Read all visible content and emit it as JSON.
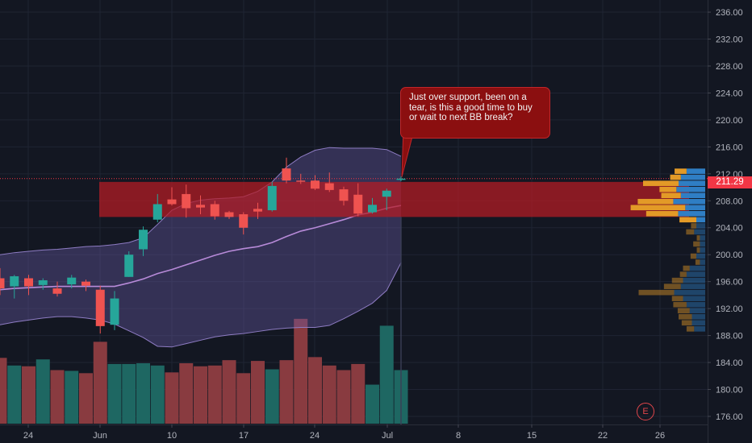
{
  "chart_data": {
    "type": "candlestick",
    "x_axis": {
      "tick_labels": [
        "24",
        "Jun",
        "10",
        "17",
        "24",
        "Jul",
        "8",
        "15",
        "22",
        "26"
      ]
    },
    "y_axis": {
      "range": [
        174.8,
        237.8
      ],
      "tick_values": [
        176,
        180,
        184,
        188,
        192,
        196,
        200,
        204,
        208,
        212,
        216,
        220,
        224,
        228,
        232,
        236
      ],
      "tick_labels": [
        "176.00",
        "180.00",
        "184.00",
        "188.00",
        "192.00",
        "196.00",
        "200.00",
        "204.00",
        "208.00",
        "212.00",
        "216.00",
        "220.00",
        "224.00",
        "228.00",
        "232.00",
        "236.00"
      ]
    },
    "last_price": "211.29",
    "last_price_value": 211.29,
    "annotation": "Just over support, been on a tear, is this a good time to buy or wait to next BB break?",
    "earnings_marker": "E",
    "support_zone": {
      "top": 210.8,
      "bottom": 205.6
    },
    "candles": [
      {
        "o": 196.5,
        "h": 198.0,
        "l": 194.0,
        "c": 195.0
      },
      {
        "o": 195.3,
        "h": 197.0,
        "l": 193.5,
        "c": 196.8
      },
      {
        "o": 196.5,
        "h": 197.0,
        "l": 194.0,
        "c": 195.3
      },
      {
        "o": 195.5,
        "h": 196.5,
        "l": 194.8,
        "c": 196.2
      },
      {
        "o": 195.0,
        "h": 196.0,
        "l": 193.8,
        "c": 194.2
      },
      {
        "o": 195.6,
        "h": 197.0,
        "l": 195.0,
        "c": 196.6
      },
      {
        "o": 196.0,
        "h": 196.3,
        "l": 194.6,
        "c": 195.4
      },
      {
        "o": 194.8,
        "h": 195.4,
        "l": 188.3,
        "c": 189.4
      },
      {
        "o": 189.6,
        "h": 194.6,
        "l": 188.8,
        "c": 193.5
      },
      {
        "o": 196.7,
        "h": 200.5,
        "l": 196.7,
        "c": 200.0
      },
      {
        "o": 200.8,
        "h": 204.2,
        "l": 199.8,
        "c": 203.7
      },
      {
        "o": 205.2,
        "h": 209.0,
        "l": 204.8,
        "c": 207.5
      },
      {
        "o": 208.2,
        "h": 210.0,
        "l": 207.3,
        "c": 207.5
      },
      {
        "o": 209.0,
        "h": 210.4,
        "l": 205.5,
        "c": 206.9
      },
      {
        "o": 207.4,
        "h": 208.8,
        "l": 206.0,
        "c": 207.0
      },
      {
        "o": 207.5,
        "h": 208.0,
        "l": 205.2,
        "c": 205.7
      },
      {
        "o": 206.3,
        "h": 206.5,
        "l": 205.3,
        "c": 205.6
      },
      {
        "o": 206.0,
        "h": 206.3,
        "l": 203.0,
        "c": 204.0
      },
      {
        "o": 206.8,
        "h": 207.7,
        "l": 205.3,
        "c": 206.4
      },
      {
        "o": 206.6,
        "h": 210.8,
        "l": 206.4,
        "c": 210.2
      },
      {
        "o": 212.8,
        "h": 214.4,
        "l": 210.6,
        "c": 211.0
      },
      {
        "o": 211.0,
        "h": 212.0,
        "l": 210.5,
        "c": 210.9
      },
      {
        "o": 211.0,
        "h": 211.8,
        "l": 209.6,
        "c": 209.8
      },
      {
        "o": 210.6,
        "h": 212.2,
        "l": 209.3,
        "c": 209.6
      },
      {
        "o": 209.7,
        "h": 210.1,
        "l": 207.3,
        "c": 208.0
      },
      {
        "o": 208.9,
        "h": 210.6,
        "l": 205.7,
        "c": 206.1
      },
      {
        "o": 206.3,
        "h": 208.4,
        "l": 206.1,
        "c": 207.4
      },
      {
        "o": 208.6,
        "h": 209.8,
        "l": 206.6,
        "c": 209.5
      },
      {
        "o": 211.1,
        "h": 211.6,
        "l": 210.9,
        "c": 211.29
      }
    ],
    "volume_relative": [
      0.86,
      0.76,
      0.75,
      0.84,
      0.7,
      0.69,
      0.66,
      1.07,
      0.78,
      0.78,
      0.79,
      0.76,
      0.67,
      0.79,
      0.75,
      0.76,
      0.83,
      0.66,
      0.82,
      0.71,
      0.83,
      1.37,
      0.87,
      0.76,
      0.7,
      0.78,
      0.51,
      1.28,
      0.7
    ],
    "bollinger": {
      "upper": [
        200.0,
        200.3,
        200.5,
        200.7,
        200.8,
        201.0,
        201.2,
        201.3,
        201.5,
        201.8,
        202.5,
        204.5,
        206.6,
        207.6,
        208.1,
        208.3,
        208.4,
        208.6,
        209.4,
        210.8,
        213.0,
        214.5,
        215.5,
        215.9,
        215.8,
        215.8,
        215.8,
        215.6,
        214.6
      ],
      "middle": [
        194.8,
        195.0,
        195.1,
        195.2,
        195.3,
        195.3,
        195.3,
        195.3,
        195.3,
        195.8,
        196.4,
        197.2,
        197.8,
        198.5,
        199.2,
        199.9,
        200.5,
        200.9,
        201.2,
        201.8,
        202.7,
        203.5,
        204.0,
        204.6,
        205.2,
        205.9,
        206.3,
        206.9,
        207.3
      ],
      "lower": [
        189.6,
        190.0,
        190.3,
        190.6,
        190.8,
        190.8,
        190.6,
        190.3,
        189.7,
        188.7,
        187.7,
        186.4,
        186.3,
        186.8,
        187.3,
        187.8,
        188.1,
        188.3,
        188.6,
        188.9,
        189.1,
        189.2,
        189.2,
        189.5,
        190.5,
        191.6,
        192.8,
        194.7,
        198.8
      ]
    },
    "volume_profile": [
      {
        "price": 212.35,
        "up": 0.42,
        "down": 0.27
      },
      {
        "price": 211.45,
        "up": 0.55,
        "down": 0.24
      },
      {
        "price": 210.55,
        "up": 0.6,
        "down": 0.8
      },
      {
        "price": 209.65,
        "up": 0.65,
        "down": 0.38
      },
      {
        "price": 208.75,
        "up": 0.55,
        "down": 0.44
      },
      {
        "price": 207.85,
        "up": 0.72,
        "down": 0.8
      },
      {
        "price": 206.95,
        "up": 0.45,
        "down": 1.23
      },
      {
        "price": 206.05,
        "up": 0.61,
        "down": 0.72
      },
      {
        "price": 205.15,
        "up": 0.2,
        "down": 0.38
      },
      {
        "price": 204.25,
        "up": 0.2,
        "down": 0.12
      },
      {
        "price": 203.35,
        "up": 0.25,
        "down": 0.18
      },
      {
        "price": 202.45,
        "up": 0.12,
        "down": 0.07
      },
      {
        "price": 201.55,
        "up": 0.12,
        "down": 0.15
      },
      {
        "price": 200.65,
        "up": 0.12,
        "down": 0.07
      },
      {
        "price": 199.75,
        "up": 0.2,
        "down": 0.13
      },
      {
        "price": 198.85,
        "up": 0.12,
        "down": 0.1
      },
      {
        "price": 197.95,
        "up": 0.35,
        "down": 0.15
      },
      {
        "price": 197.05,
        "up": 0.42,
        "down": 0.15
      },
      {
        "price": 196.15,
        "up": 0.5,
        "down": 0.25
      },
      {
        "price": 195.25,
        "up": 0.55,
        "down": 0.38
      },
      {
        "price": 194.35,
        "up": 0.7,
        "down": 0.8
      },
      {
        "price": 193.45,
        "up": 0.5,
        "down": 0.25
      },
      {
        "price": 192.55,
        "up": 0.42,
        "down": 0.3
      },
      {
        "price": 191.65,
        "up": 0.35,
        "down": 0.27
      },
      {
        "price": 190.75,
        "up": 0.3,
        "down": 0.3
      },
      {
        "price": 189.85,
        "up": 0.3,
        "down": 0.23
      },
      {
        "price": 188.95,
        "up": 0.25,
        "down": 0.17
      }
    ],
    "colors": {
      "background": "#131722",
      "grid": "#1f2433",
      "up": "#26a69a",
      "down": "#ef5350",
      "volume_up": "#1f6b66",
      "volume_down": "#8f3d42",
      "bb_fill": "#6c5da8",
      "bb_line": "#8e7cc3",
      "bb_mid": "#b78ad8",
      "zone": "#b71c24",
      "profile_up": "#2f7ec4",
      "profile_down": "#e39a27",
      "price_line": "#f23645"
    }
  }
}
